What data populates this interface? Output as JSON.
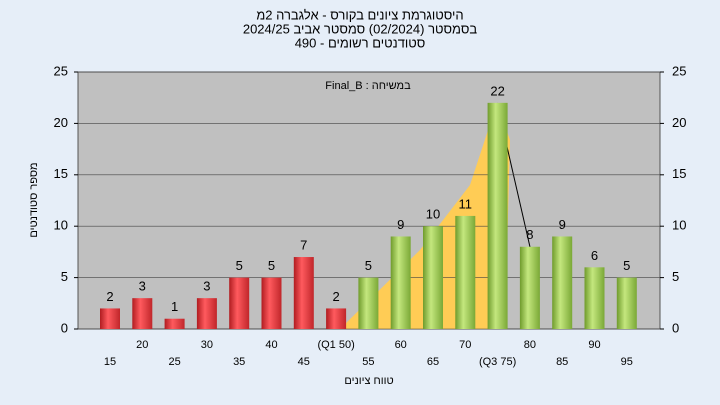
{
  "chart_data": {
    "type": "bar",
    "title_lines": [
      "היסטוגרמת ציונים בקורס - אלגברה 2מ",
      "בסמסטר  (02/2024)  סמסטר אביב 2024/25",
      "סטודנטים רשומים - 490"
    ],
    "annotation": "Final_B : במשיחה",
    "x_label": "טווח ציונים",
    "y_label": "מספר סטודנטים",
    "categories": [
      "15",
      "20",
      "25",
      "30",
      "35",
      "40",
      "45",
      "(Q1 50)",
      "55",
      "60",
      "65",
      "70",
      "(Q3 75)",
      "80",
      "85",
      "90",
      "95"
    ],
    "values": [
      2,
      3,
      1,
      3,
      5,
      5,
      7,
      2,
      5,
      9,
      10,
      11,
      22,
      8,
      9,
      6,
      5
    ],
    "colors": [
      "red",
      "red",
      "red",
      "red",
      "red",
      "red",
      "red",
      "red",
      "green",
      "green",
      "green",
      "green",
      "green",
      "green",
      "green",
      "green",
      "green"
    ],
    "ylim": [
      0,
      25
    ],
    "yticks": [
      0,
      5,
      10,
      15,
      20,
      25
    ],
    "y2lim": [
      0,
      25
    ],
    "y2ticks": [
      0,
      5,
      10,
      15,
      20,
      25
    ],
    "grid": true
  }
}
